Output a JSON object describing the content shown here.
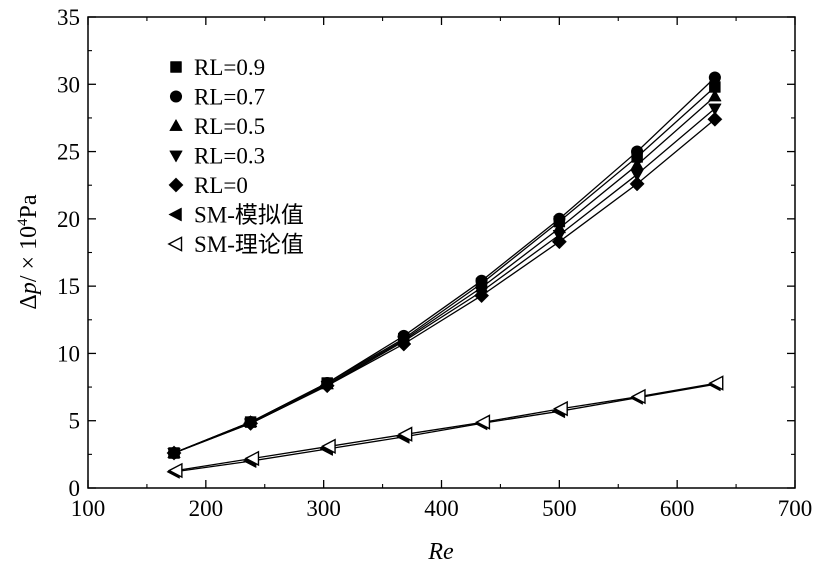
{
  "chart_data": {
    "type": "line",
    "title": "",
    "xlabel": "Re",
    "ylabel_parts": [
      "Δ",
      "p",
      "/ × 10",
      "4",
      "Pa"
    ],
    "xlim": [
      100,
      700
    ],
    "ylim": [
      0,
      35
    ],
    "x_ticks": [
      100,
      200,
      300,
      400,
      500,
      600,
      700
    ],
    "y_ticks": [
      0,
      5,
      10,
      15,
      20,
      25,
      30,
      35
    ],
    "grid": false,
    "legend_placement": "top-left",
    "series": [
      {
        "name": "RL=0.9",
        "marker": "square",
        "x": [
          173,
          238,
          303,
          368,
          434,
          500,
          566,
          632
        ],
        "values": [
          2.6,
          4.9,
          7.8,
          11.1,
          15.2,
          19.8,
          24.6,
          29.8
        ]
      },
      {
        "name": "RL=0.7",
        "marker": "circle",
        "x": [
          173,
          238,
          303,
          368,
          434,
          500,
          566,
          632
        ],
        "values": [
          2.6,
          4.9,
          7.8,
          11.3,
          15.4,
          20.0,
          25.0,
          30.5
        ]
      },
      {
        "name": "RL=0.5",
        "marker": "triangle-up",
        "x": [
          173,
          238,
          303,
          368,
          434,
          500,
          566,
          632
        ],
        "values": [
          2.6,
          4.9,
          7.7,
          11.0,
          14.9,
          19.3,
          24.0,
          29.1
        ]
      },
      {
        "name": "RL=0.3",
        "marker": "triangle-down",
        "x": [
          173,
          238,
          303,
          368,
          434,
          500,
          566,
          632
        ],
        "values": [
          2.6,
          4.8,
          7.6,
          10.9,
          14.6,
          18.8,
          23.3,
          28.2
        ]
      },
      {
        "name": "RL=0",
        "marker": "diamond",
        "x": [
          173,
          238,
          303,
          368,
          434,
          500,
          566,
          632
        ],
        "values": [
          2.6,
          4.8,
          7.6,
          10.7,
          14.3,
          18.3,
          22.6,
          27.4
        ]
      },
      {
        "name": "SM-模拟值",
        "marker": "triangle-left",
        "x": [
          173,
          238,
          303,
          368,
          434,
          500,
          566,
          632
        ],
        "values": [
          1.2,
          2.0,
          2.9,
          3.8,
          4.8,
          5.7,
          6.7,
          7.7
        ]
      },
      {
        "name": "SM-理论值",
        "marker": "triangle-left-open",
        "x": [
          175,
          240,
          305,
          370,
          436,
          502,
          568,
          634
        ],
        "values": [
          1.3,
          2.2,
          3.1,
          4.0,
          4.9,
          5.9,
          6.8,
          7.8
        ]
      }
    ]
  }
}
